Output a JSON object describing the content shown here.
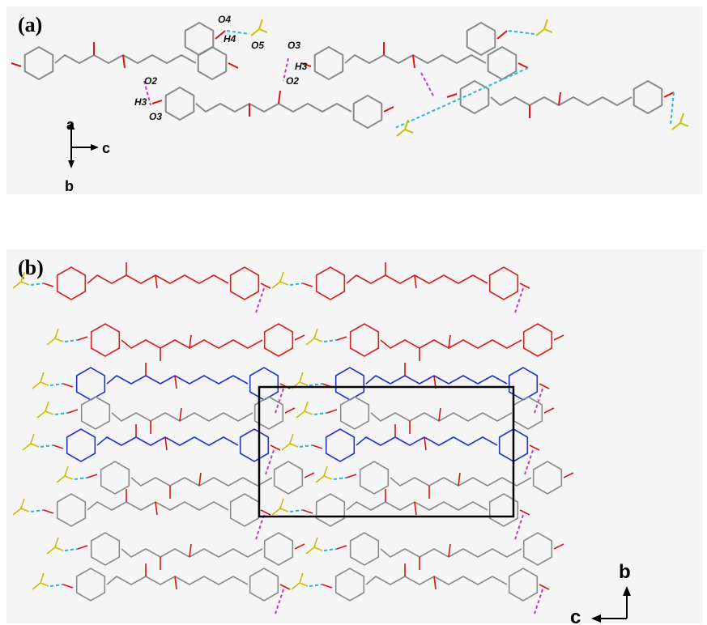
{
  "panel_a": {
    "label": "(a)",
    "atom_labels": [
      "O4",
      "H4",
      "O5",
      "O2",
      "H3",
      "O3",
      "O3",
      "H3",
      "O2"
    ],
    "axes": {
      "up": "a",
      "right": "c",
      "down": "b"
    }
  },
  "panel_b": {
    "label": "(b)",
    "axes": {
      "up": "b",
      "left": "c"
    }
  },
  "colors": {
    "background": "#f5f5f5",
    "molecule_gray": "#8a8a8a",
    "molecule_red": "#d42020",
    "molecule_blue": "#2233cc",
    "oxygen_red": "#dd1111",
    "solvent_yellow": "#c8c000",
    "hbond_cyan": "#22bbcc",
    "hbond_magenta": "#cc33cc",
    "unit_cell": "#000000"
  }
}
